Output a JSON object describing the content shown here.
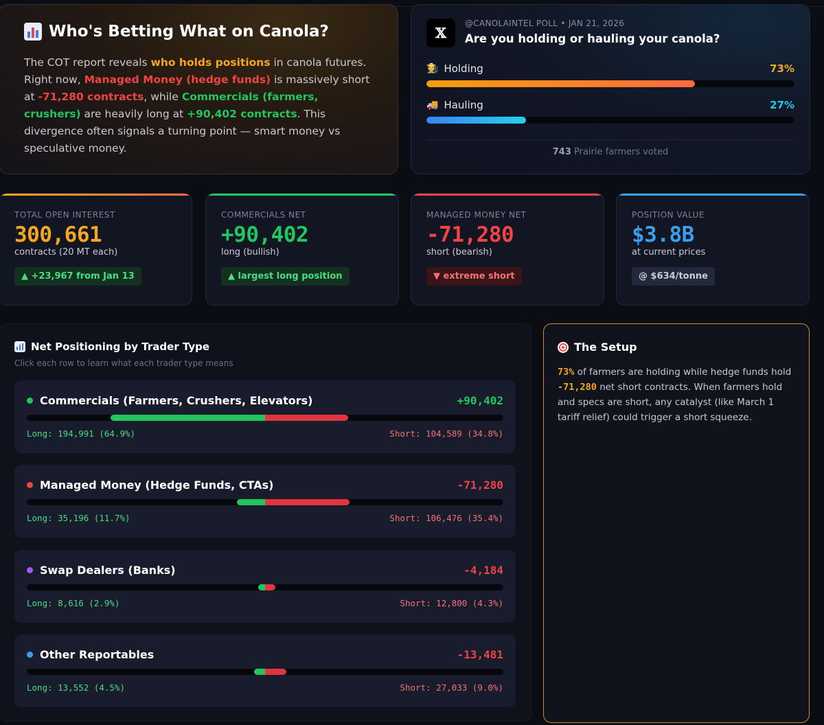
{
  "intro": {
    "title": "Who's Betting What on Canola?",
    "p1": "The COT report reveals ",
    "hl1": "who holds positions",
    "p2": " in canola futures. Right now, ",
    "hl2": "Managed Money (hedge funds)",
    "p3": " is massively short at ",
    "hl3": "-71,280 contracts",
    "p4": ", while ",
    "hl4": "Commercials (farmers, crushers)",
    "p5": " are heavily long at ",
    "hl5": "+90,402 contracts",
    "p6": ". This divergence often signals a turning point — smart money vs speculative money."
  },
  "poll": {
    "logo": "𝕏",
    "meta": "@CANOLAINTEL POLL • JAN 21, 2026",
    "question": "Are you holding or hauling your canola?",
    "options": [
      {
        "icon": "farmer-icon",
        "label": "Holding",
        "pct_label": "73%",
        "value": 73,
        "color": "#f5a623"
      },
      {
        "icon": "truck-icon",
        "label": "Hauling",
        "pct_label": "27%",
        "value": 27,
        "color": "#22c8f0"
      }
    ],
    "voters_count": "743",
    "voters_text": " Prairie farmers voted"
  },
  "stats": [
    {
      "label": "TOTAL OPEN INTEREST",
      "value": "300,661",
      "sub": "contracts (20 MT each)",
      "chip": "▲ +23,967 from Jan 13",
      "color": "#f5a623"
    },
    {
      "label": "COMMERCIALS NET",
      "value": "+90,402",
      "sub": "long (bullish)",
      "chip": "▲ largest long position",
      "color": "#22c55e"
    },
    {
      "label": "MANAGED MONEY NET",
      "value": "-71,280",
      "sub": "short (bearish)",
      "chip": "▼ extreme short",
      "color": "#ef4444"
    },
    {
      "label": "POSITION VALUE",
      "value": "$3.8B",
      "sub": "at current prices",
      "chip": "@ $634/tonne",
      "color": "#3b9ee8"
    }
  ],
  "positioning": {
    "title": "Net Positioning by Trader Type",
    "hint": "Click each row to learn what each trader type means",
    "traders": [
      {
        "name": "Commercials (Farmers, Crushers, Elevators)",
        "dot": "#22c55e",
        "net": "+90,402",
        "net_color": "#22c55e",
        "long_label": "Long: 194,991 (64.9%)",
        "short_label": "Short: 104,589 (34.8%)",
        "long_pct": 64.9,
        "short_pct": 34.8
      },
      {
        "name": "Managed Money (Hedge Funds, CTAs)",
        "dot": "#ef4444",
        "net": "-71,280",
        "net_color": "#ef4444",
        "long_label": "Long: 35,196 (11.7%)",
        "short_label": "Short: 106,476 (35.4%)",
        "long_pct": 11.7,
        "short_pct": 35.4
      },
      {
        "name": "Swap Dealers (Banks)",
        "dot": "#a855f7",
        "net": "-4,184",
        "net_color": "#ef4444",
        "long_label": "Long: 8,616 (2.9%)",
        "short_label": "Short: 12,800 (4.3%)",
        "long_pct": 2.9,
        "short_pct": 4.3
      },
      {
        "name": "Other Reportables",
        "dot": "#3b9ee8",
        "net": "-13,481",
        "net_color": "#ef4444",
        "long_label": "Long: 13,552 (4.5%)",
        "short_label": "Short: 27,033 (9.0%)",
        "long_pct": 4.5,
        "short_pct": 9.0
      }
    ]
  },
  "setup": {
    "title": "The Setup",
    "hl1": "73%",
    "t1": " of farmers are holding while hedge funds hold ",
    "hl2": "-71,280",
    "t2": " net short contracts. When farmers hold and specs are short, any catalyst (like March 1 tariff relief) could trigger a short squeeze."
  }
}
